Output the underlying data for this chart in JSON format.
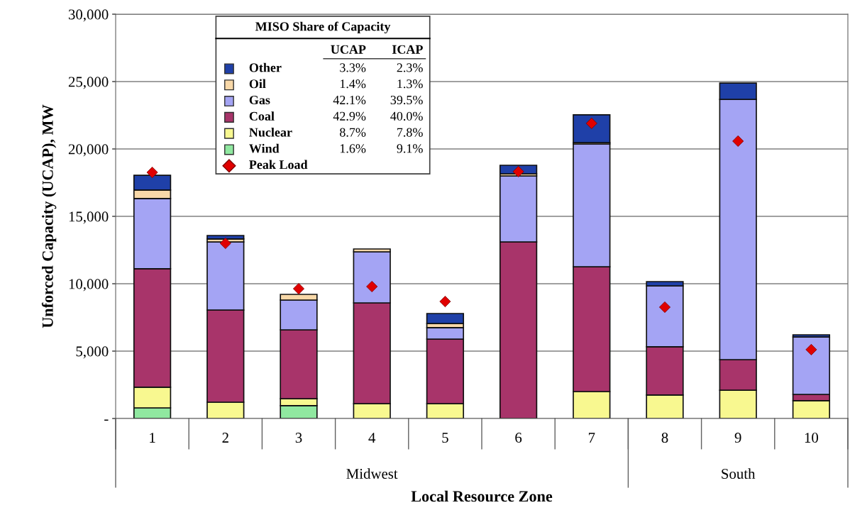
{
  "chart_data": {
    "type": "bar",
    "stacked": true,
    "xlabel": "Local Resource Zone",
    "ylabel": "Unforced Capacity (UCAP), MW",
    "legend_title": "MISO Share of Capacity",
    "legend": "top left",
    "categories": [
      "1",
      "2",
      "3",
      "4",
      "5",
      "6",
      "7",
      "8",
      "9",
      "10"
    ],
    "series": [
      {
        "name": "Wind",
        "color": "#90e8a0",
        "values": [
          790,
          0,
          950,
          0,
          0,
          0,
          null,
          0,
          0,
          0
        ]
      },
      {
        "name": "Nuclear",
        "color": "#f8f890",
        "values": [
          1530,
          1210,
          520,
          1100,
          1100,
          0,
          2000,
          1740,
          2100,
          1320
        ]
      },
      {
        "name": "Coal",
        "color": "#a8346a",
        "values": [
          8790,
          6840,
          5110,
          7480,
          4790,
          13100,
          9260,
          3580,
          2270,
          470
        ]
      },
      {
        "name": "Gas",
        "color": "#a4a4f4",
        "values": [
          5210,
          5050,
          2210,
          3790,
          850,
          4900,
          9110,
          4520,
          19310,
          4260
        ]
      },
      {
        "name": "Oil",
        "color": "#f8d8a8",
        "values": [
          630,
          220,
          420,
          210,
          310,
          160,
          100,
          0,
          0,
          0
        ]
      },
      {
        "name": "Other",
        "color": "#1f40a8",
        "values": [
          1100,
          260,
          0,
          0,
          740,
          630,
          2060,
          320,
          1210,
          160
        ]
      },
      {
        "name": "Peak Load",
        "type": "scatter",
        "marker": "diamond",
        "color": "#e00000",
        "x": [
          "1",
          "2",
          "3",
          "4",
          "5",
          "6",
          "7",
          "8",
          "9",
          "10"
        ],
        "values": [
          18260,
          13000,
          9630,
          9790,
          8680,
          18320,
          21900,
          8260,
          20580,
          5110
        ]
      }
    ],
    "ylim": [
      0,
      30000
    ],
    "yticks": [
      {
        "value": 0,
        "label": "-"
      },
      {
        "value": 5000,
        "label": "5,000"
      },
      {
        "value": 10000,
        "label": "10,000"
      },
      {
        "value": 15000,
        "label": "15,000"
      },
      {
        "value": 20000,
        "label": "20,000"
      },
      {
        "value": 25000,
        "label": "25,000"
      },
      {
        "value": 30000,
        "label": "30,000"
      }
    ],
    "grid": "y",
    "annotations": [
      "UCAP",
      "ICAP",
      "3.3%",
      "2.3%",
      "1.4%",
      "1.3%",
      "42.1%",
      "39.5%",
      "42.9%",
      "40.0%",
      "8.7%",
      "7.8%",
      "1.6%",
      "9.1%",
      "Midwest",
      "South"
    ]
  }
}
